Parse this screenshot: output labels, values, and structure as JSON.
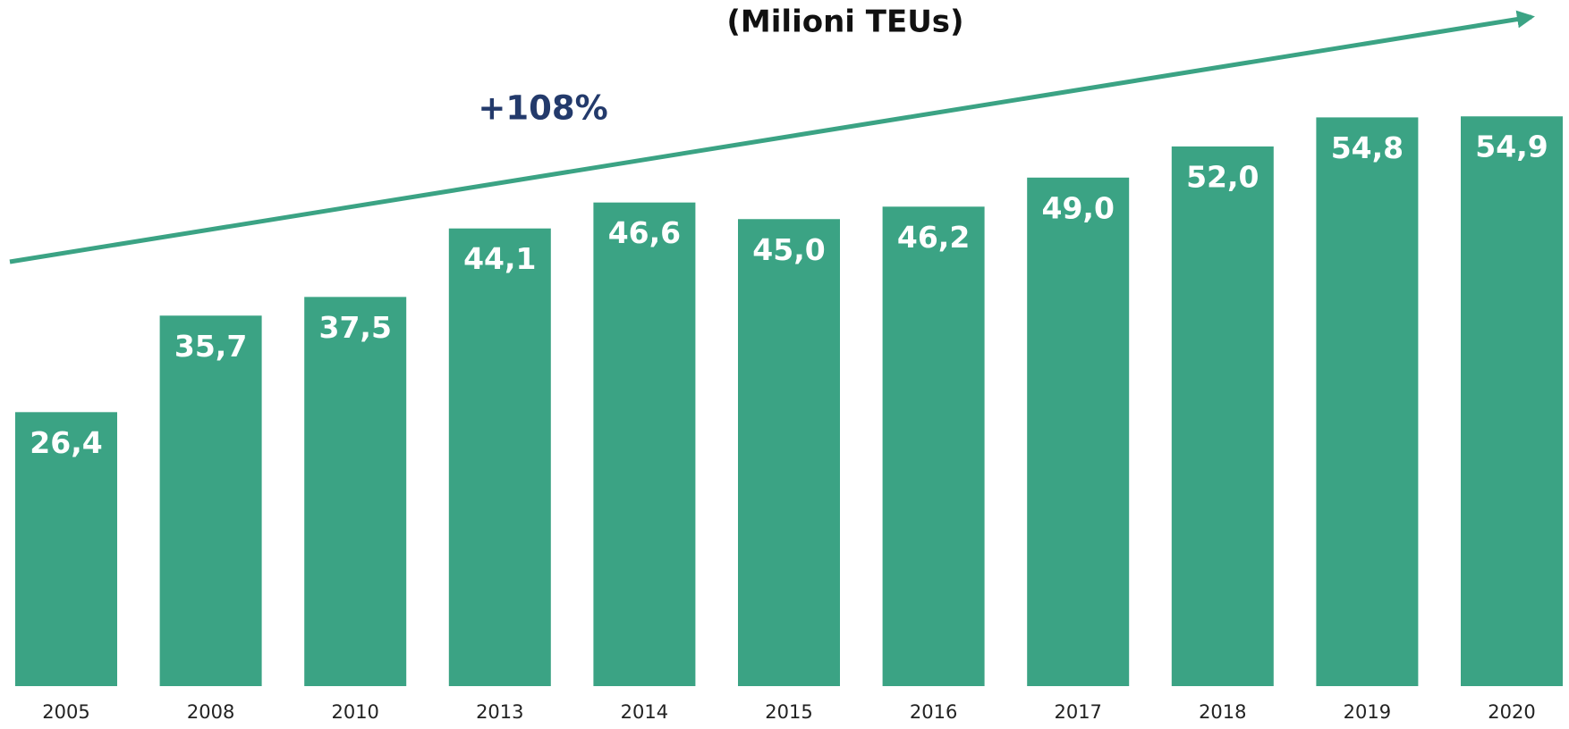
{
  "chart_data": {
    "type": "bar",
    "title": "(Milioni TEUs)",
    "annotation": "+108%",
    "categories": [
      "2005",
      "2008",
      "2010",
      "2013",
      "2014",
      "2015",
      "2016",
      "2017",
      "2018",
      "2019",
      "2020"
    ],
    "values": [
      26.4,
      35.7,
      37.5,
      44.1,
      46.6,
      45.0,
      46.2,
      49.0,
      52.0,
      54.8,
      54.9
    ],
    "value_labels": [
      "26,4",
      "35,7",
      "37,5",
      "44,1",
      "46,6",
      "45,0",
      "46,2",
      "49,0",
      "52,0",
      "54,8",
      "54,9"
    ],
    "color": "#3ba384",
    "ylim": [
      0,
      60
    ]
  }
}
